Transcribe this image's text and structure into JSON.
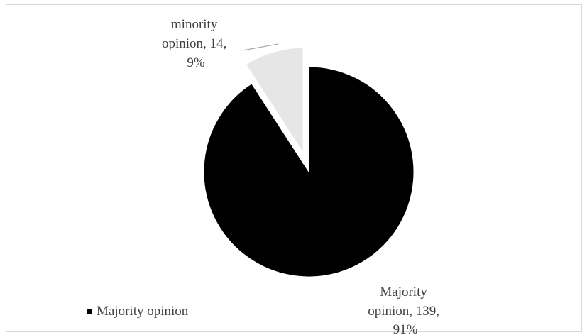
{
  "chart_data": {
    "type": "pie",
    "slices": [
      {
        "label": "Majority opinion",
        "value": 139,
        "percent": 91,
        "color": "#000000",
        "exploded": false
      },
      {
        "label": "minority opinion",
        "value": 14,
        "percent": 9,
        "color": "#e7e6e6",
        "exploded": true
      }
    ],
    "data_labels": {
      "majority": [
        "Majority",
        "opinion, 139,",
        "91%"
      ],
      "minority": [
        "minority",
        "opinion, 14,",
        "9%"
      ]
    },
    "legend": {
      "position": "bottom-left",
      "entries": [
        {
          "label": "Majority opinion",
          "color": "#000000"
        }
      ]
    },
    "colors": {
      "leader_line": "#a6a6a6",
      "label_text": "#404040",
      "border": "#d9d9d9"
    }
  }
}
